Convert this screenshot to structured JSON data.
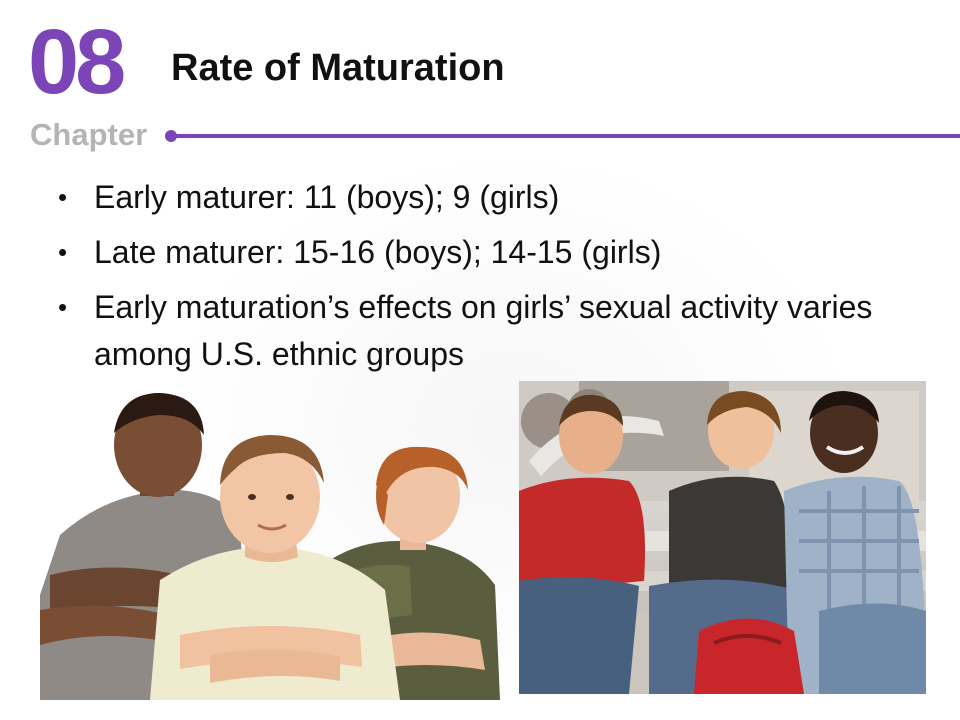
{
  "chapter": {
    "number": "08",
    "label": "Chapter"
  },
  "slide": {
    "title": "Rate of Maturation",
    "bullets": [
      "Early maturer:  11 (boys); 9 (girls)",
      "Late maturer: 15-16 (boys); 14-15 (girls)",
      "Early maturation’s effects on girls’ sexual activity varies among U.S. ethnic groups"
    ],
    "bullet_glyph": "•"
  },
  "colors": {
    "accent": "#7b45b8",
    "chapter_label": "#b4b4b4",
    "text": "#111111"
  },
  "images": {
    "left": "photo-three-boys",
    "right": "photo-teens-on-stairs"
  }
}
